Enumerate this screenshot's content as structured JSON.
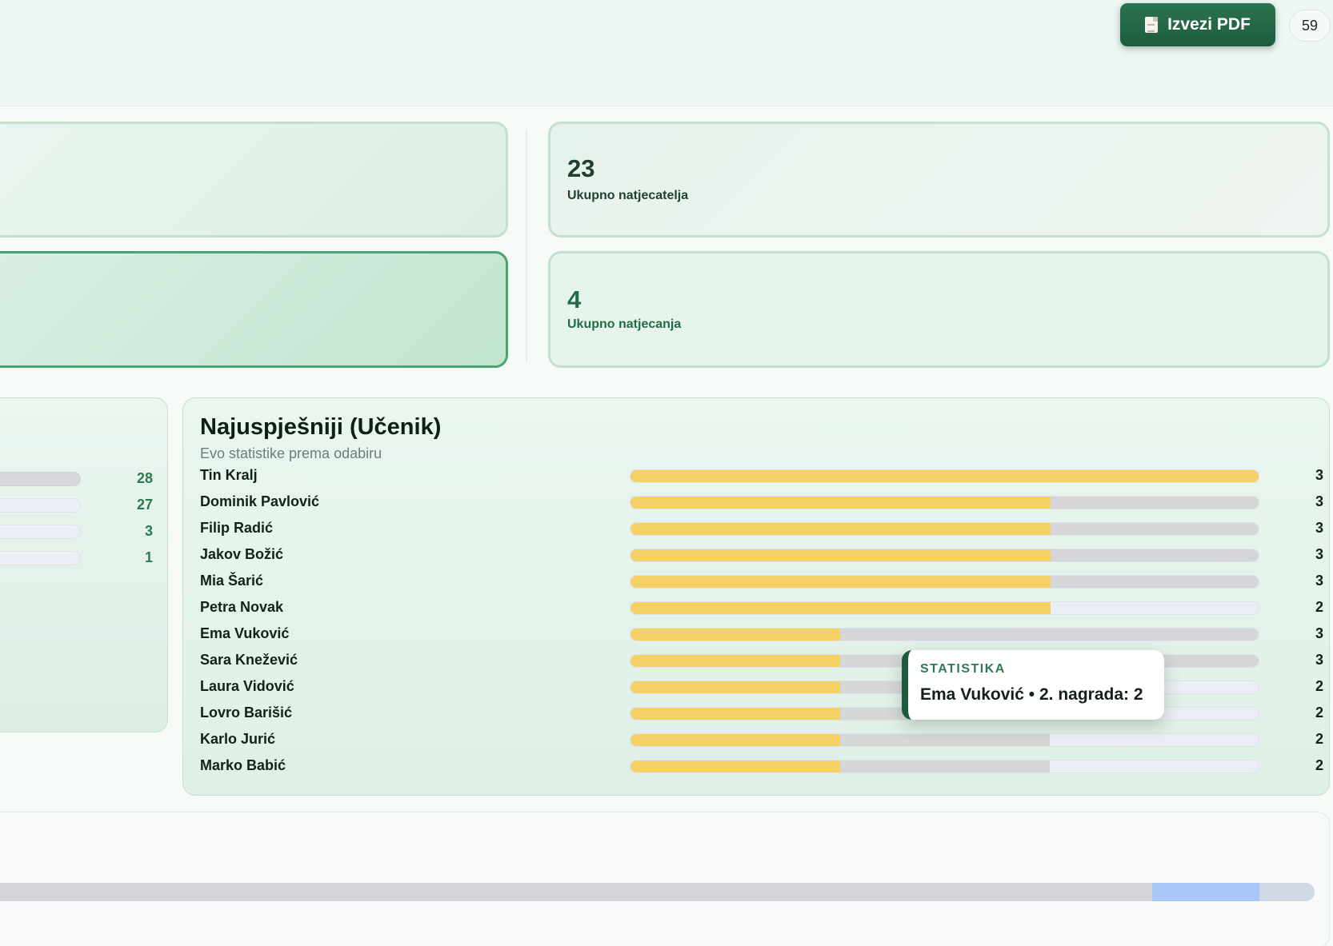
{
  "header": {
    "export_label": "Izvezi PDF",
    "export_icon": "document-icon",
    "count_badge": "59"
  },
  "stats": [
    {
      "value": "23",
      "label": "Ukupno natjecatelja"
    },
    {
      "value": "4",
      "label": "Ukupno natjecanja"
    }
  ],
  "left_panel": {
    "values": [
      "28",
      "27",
      "3",
      "1"
    ]
  },
  "main_panel": {
    "title": "Najuspješniji (Učenik)",
    "subtitle": "Evo statistike prema odabiru",
    "colors": {
      "first_segment": "#f5d064",
      "second_segment": "#d6d6d8",
      "empty": "#eceef5"
    },
    "rows": [
      {
        "name": "Tin Kralj",
        "total": "3",
        "first_fraction": 1.0,
        "second_fraction": 0.0
      },
      {
        "name": "Dominik Pavlović",
        "total": "3",
        "first_fraction": 0.667,
        "second_fraction": 0.333
      },
      {
        "name": "Filip Radić",
        "total": "3",
        "first_fraction": 0.667,
        "second_fraction": 0.333
      },
      {
        "name": "Jakov Božić",
        "total": "3",
        "first_fraction": 0.667,
        "second_fraction": 0.333
      },
      {
        "name": "Mia Šarić",
        "total": "3",
        "first_fraction": 0.667,
        "second_fraction": 0.333
      },
      {
        "name": "Petra Novak",
        "total": "2",
        "first_fraction": 0.667,
        "second_fraction": 0.0
      },
      {
        "name": "Ema Vuković",
        "total": "3",
        "first_fraction": 0.333,
        "second_fraction": 0.667
      },
      {
        "name": "Sara Knežević",
        "total": "3",
        "first_fraction": 0.333,
        "second_fraction": 0.667
      },
      {
        "name": "Laura Vidović",
        "total": "2",
        "first_fraction": 0.333,
        "second_fraction": 0.333
      },
      {
        "name": "Lovro Barišić",
        "total": "2",
        "first_fraction": 0.333,
        "second_fraction": 0.333
      },
      {
        "name": "Karlo Jurić",
        "total": "2",
        "first_fraction": 0.333,
        "second_fraction": 0.333
      },
      {
        "name": "Marko Babić",
        "total": "2",
        "first_fraction": 0.333,
        "second_fraction": 0.333
      }
    ]
  },
  "tooltip": {
    "kicker": "STATISTIKA",
    "text": "Ema Vuković • 2. nagrada: 2"
  }
}
